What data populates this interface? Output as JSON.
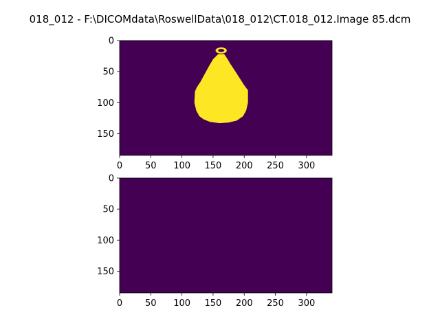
{
  "window": {
    "title": "018_012 - F:\\DICOMdata\\RoswellData\\018_012\\CT.018_012.Image 85.dcm"
  },
  "colors": {
    "background_class": "#440154",
    "mask_class": "#fde725",
    "mask_hole": "#440154",
    "axes_edge": "#000000"
  },
  "chart_data": [
    {
      "type": "heatmap",
      "title": "",
      "xlabel": "",
      "ylabel": "",
      "xlim": [
        0,
        341
      ],
      "ylim": [
        185,
        0
      ],
      "xticks": [
        "0",
        "50",
        "100",
        "150",
        "200",
        "250",
        "300"
      ],
      "yticks": [
        "0",
        "50",
        "100",
        "150"
      ],
      "xtick_values": [
        0,
        50,
        100,
        150,
        200,
        250,
        300
      ],
      "ytick_values": [
        0,
        50,
        100,
        150
      ],
      "colormap": "viridis",
      "values_present": [
        0,
        1
      ],
      "mask_region": {
        "description_shape": "vase-shaped segmentation mask",
        "outline": [
          [
            158,
            22
          ],
          [
            150,
            30
          ],
          [
            143,
            42
          ],
          [
            136,
            55
          ],
          [
            130,
            66
          ],
          [
            124,
            75
          ],
          [
            121,
            82
          ],
          [
            120,
            100
          ],
          [
            123,
            113
          ],
          [
            128,
            122
          ],
          [
            135,
            127
          ],
          [
            145,
            131
          ],
          [
            160,
            133
          ],
          [
            175,
            132
          ],
          [
            188,
            129
          ],
          [
            198,
            122
          ],
          [
            203,
            113
          ],
          [
            206,
            100
          ],
          [
            206,
            80
          ],
          [
            200,
            72
          ],
          [
            193,
            61
          ],
          [
            186,
            50
          ],
          [
            178,
            38
          ],
          [
            172,
            28
          ],
          [
            168,
            22
          ]
        ],
        "top_ring": {
          "center": [
            163,
            16
          ],
          "radius_x": 9,
          "radius_y": 5,
          "hole_radius_x": 5,
          "hole_radius_y": 2.5
        }
      }
    },
    {
      "type": "heatmap",
      "title": "",
      "xlabel": "",
      "ylabel": "",
      "xlim": [
        0,
        341
      ],
      "ylim": [
        185,
        0
      ],
      "xticks": [
        "0",
        "50",
        "100",
        "150",
        "200",
        "250",
        "300"
      ],
      "yticks": [
        "0",
        "50",
        "100",
        "150"
      ],
      "xtick_values": [
        0,
        50,
        100,
        150,
        200,
        250,
        300
      ],
      "ytick_values": [
        0,
        50,
        100,
        150
      ],
      "colormap": "viridis",
      "values_present": [
        0
      ],
      "mask_region": null
    }
  ]
}
